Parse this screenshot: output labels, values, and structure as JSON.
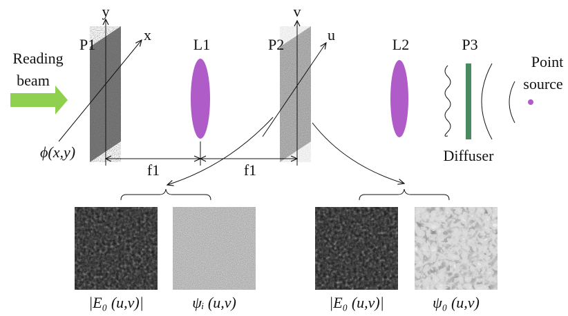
{
  "labels": {
    "p1": "P1",
    "y": "y",
    "x": "x",
    "reading": "Reading",
    "beam": "beam",
    "phi": "ϕ(x,y)",
    "l1": "L1",
    "p2": "P2",
    "v": "v",
    "u": "u",
    "l2": "L2",
    "p3": "P3",
    "point": "Point",
    "source": "source",
    "diffuser": "Diffuser",
    "f1a": "f1",
    "f1b": "f1"
  },
  "images": [
    {
      "caption": "|E₀ (u,v)|"
    },
    {
      "caption": "ψᵢ (u,v)"
    },
    {
      "caption": "|E₀ (u,v)|"
    },
    {
      "caption": "ψ₀ (u,v)"
    }
  ]
}
